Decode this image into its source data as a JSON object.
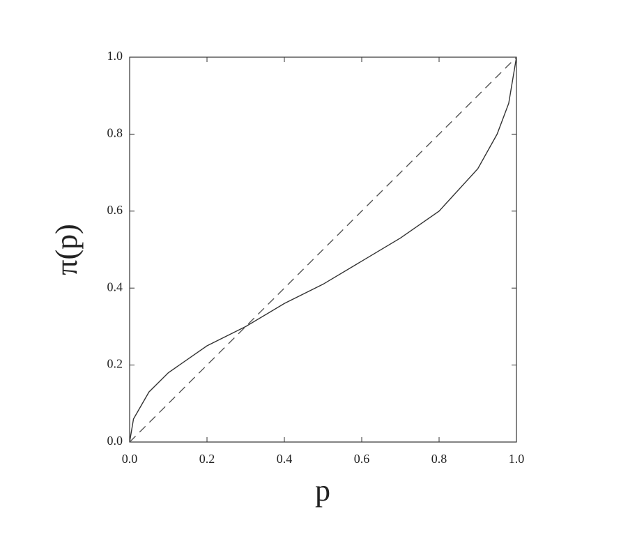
{
  "chart_data": {
    "type": "line",
    "x_label": "p",
    "y_label": "π(p)",
    "x": [
      0,
      0.01,
      0.05,
      0.1,
      0.2,
      0.3,
      0.4,
      0.5,
      0.6,
      0.7,
      0.8,
      0.9,
      0.95,
      0.98,
      1.0
    ],
    "series": [
      {
        "color": "#333333",
        "line_style": "solid",
        "values": [
          0,
          0.06,
          0.13,
          0.18,
          0.25,
          0.3,
          0.36,
          0.41,
          0.47,
          0.53,
          0.6,
          0.71,
          0.8,
          0.88,
          1.0
        ]
      },
      {
        "color": "#555555",
        "line_style": "dashed",
        "values": [
          0,
          0.01,
          0.05,
          0.1,
          0.2,
          0.3,
          0.4,
          0.5,
          0.6,
          0.7,
          0.8,
          0.9,
          0.95,
          0.98,
          1.0
        ]
      }
    ],
    "xlim": [
      0,
      1
    ],
    "ylim": [
      0,
      1
    ],
    "xticks": [
      {
        "value": 0,
        "label": "0.0"
      },
      0.2,
      0.4,
      0.6,
      0.8,
      {
        "value": 1,
        "label": "1.0"
      }
    ],
    "yticks": [
      {
        "value": 0,
        "label": "0.0"
      },
      0.2,
      0.4,
      0.6,
      0.8,
      {
        "value": 1,
        "label": "1.0"
      }
    ],
    "grid": false
  }
}
